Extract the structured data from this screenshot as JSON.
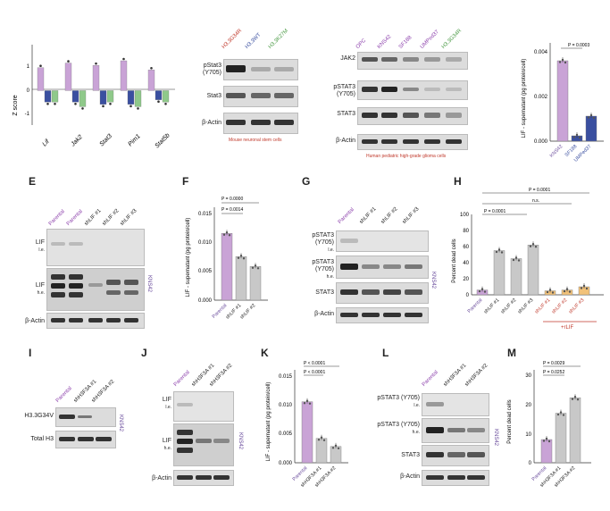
{
  "panels": {
    "labels": [
      "E",
      "F",
      "G",
      "H",
      "I",
      "J",
      "K",
      "L",
      "M"
    ]
  },
  "colors": {
    "purple": "#c9a3d6",
    "purple_dark": "#6a4c9c",
    "blue": "#3a4fa0",
    "green": "#8fc98a",
    "grey": "#c8c8c8",
    "orange": "#f2c27a",
    "red": "#c0392b"
  },
  "panelA": {
    "ylabel": "Z score",
    "genes": [
      "Lif",
      "Jak2",
      "Stat3",
      "Pim1",
      "Stat5b"
    ],
    "ticks": [
      "1",
      "0",
      "-1"
    ]
  },
  "panelB": {
    "lanes": [
      "H3.3G34R",
      "H3.3WT",
      "H3.3K27M"
    ],
    "rows": [
      "pStat3 (Y705)",
      "Stat3",
      "β-Actin"
    ],
    "caption": "Mouse neuronal stem cells"
  },
  "panelC": {
    "lanes": [
      "OPC",
      "KNS42",
      "SF188",
      "UMPed37",
      "H3.3G34R"
    ],
    "rows": [
      "JAK2",
      "pSTAT3 (Y705)",
      "STAT3",
      "β-Actin"
    ],
    "caption": "Human pediatric high-grade glioma cells"
  },
  "panelD": {
    "ylabel": "LIF - supernatant (pg protein/cell)",
    "pval": "P = 0.0003",
    "ticks": [
      "0.004",
      "0.002",
      "0.000"
    ]
  },
  "panelE": {
    "lanes": [
      "Parental",
      "Parental",
      "shLIF #1",
      "shLIF #2",
      "shLIF #3"
    ],
    "rows": [
      {
        "name": "LIF",
        "sub": "l.e."
      },
      {
        "name": "LIF",
        "sub": "h.e."
      },
      {
        "name": "β-Actin",
        "sub": ""
      }
    ],
    "cell": "KNS42"
  },
  "panelF": {
    "ylabel": "LIF - supernatant (pg protein/cell)",
    "p1": "P = 0.0000",
    "p2": "P = 0.0014",
    "ticks": [
      "0.015",
      "0.010",
      "0.005",
      "0.000"
    ]
  },
  "panelG": {
    "lanes": [
      "Parental",
      "shLIF #1",
      "shLIF #2",
      "shLIF #3"
    ],
    "rows": [
      {
        "name": "pSTAT3 (Y705)",
        "sub": "l.e."
      },
      {
        "name": "pSTAT3 (Y705)",
        "sub": "h.e."
      },
      {
        "name": "STAT3",
        "sub": ""
      },
      {
        "name": "β-Actin",
        "sub": ""
      }
    ],
    "cell": "KNS42"
  },
  "panelH": {
    "ylabel": "Percent dead cells",
    "ticks": [
      "100",
      "80",
      "60",
      "40",
      "20",
      "0"
    ],
    "p1": "P = 0.0001",
    "p2": "P = 0.0001",
    "ns": "n.s.",
    "addlbl": "+rLIF"
  },
  "panelI": {
    "lanes": [
      "Parental",
      "shH3F3A #1",
      "shH3F3A #2"
    ],
    "rows": [
      "H3.3G34V",
      "Total H3"
    ],
    "cell": "KNS42"
  },
  "panelJ": {
    "lanes": [
      "Parental",
      "shH3F3A #1",
      "shH3F3A #2"
    ],
    "rows": [
      {
        "name": "LIF",
        "sub": "l.e."
      },
      {
        "name": "LIF",
        "sub": "h.e."
      },
      {
        "name": "β-Actin",
        "sub": ""
      }
    ],
    "cell": "KNS42"
  },
  "panelK": {
    "ylabel": "LIF - supernatant (pg protein/cell)",
    "p1": "P < 0.0001",
    "p2": "P < 0.0001",
    "ticks": [
      "0.015",
      "0.010",
      "0.005",
      "0.000"
    ]
  },
  "panelL": {
    "lanes": [
      "Parental",
      "shH3F3A #1",
      "shH3F3A #2"
    ],
    "rows": [
      {
        "name": "pSTAT3 (Y705)",
        "sub": "l.e."
      },
      {
        "name": "pSTAT3 (Y705)",
        "sub": "h.e."
      },
      {
        "name": "STAT3",
        "sub": ""
      },
      {
        "name": "β-Actin",
        "sub": ""
      }
    ],
    "cell": "KNS42"
  },
  "panelM": {
    "ylabel": "Percent dead cells",
    "p1": "P = 0.0029",
    "p2": "P = 0.0252",
    "ticks": [
      "30",
      "20",
      "10",
      "0"
    ]
  },
  "chart_data": [
    {
      "type": "bar",
      "id": "A",
      "categories": [
        "Lif",
        "Jak2",
        "Stat3",
        "Pim1",
        "Stat5b"
      ],
      "series": [
        {
          "values": [
            1.0,
            1.2,
            1.1,
            1.3,
            0.9
          ]
        },
        {
          "values": [
            -0.5,
            -0.5,
            -0.6,
            -0.6,
            -0.4
          ]
        },
        {
          "values": [
            -0.5,
            -0.7,
            -0.5,
            -0.7,
            -0.5
          ]
        }
      ],
      "ylabel": "Z score",
      "ylim": [
        -1.5,
        2
      ]
    },
    {
      "type": "bar",
      "id": "D",
      "categories": [
        "KNS42",
        "SF188",
        "UMPed37"
      ],
      "values": [
        0.0045,
        0.0003,
        0.0014
      ],
      "ylabel": "LIF - supernatant (pg protein/cell)",
      "ylim": [
        0,
        0.0055
      ]
    },
    {
      "type": "bar",
      "id": "F",
      "categories": [
        "Parental",
        "shLIF #1",
        "shLIF #2"
      ],
      "values": [
        0.0115,
        0.0075,
        0.0058
      ],
      "ylabel": "LIF - supernatant (pg protein/cell)",
      "ylim": [
        0,
        0.016
      ]
    },
    {
      "type": "bar",
      "id": "H",
      "categories": [
        "Parental",
        "shLIF #1",
        "shLIF #2",
        "shLIF #3",
        "shLIF #1",
        "shLIF #2",
        "shLIF #3"
      ],
      "values": [
        6,
        55,
        45,
        62,
        5,
        6,
        10
      ],
      "ylabel": "Percent dead cells",
      "ylim": [
        0,
        100
      ]
    },
    {
      "type": "bar",
      "id": "K",
      "categories": [
        "Parental",
        "shH3F3A #1",
        "shH3F3A #2"
      ],
      "values": [
        0.0105,
        0.0042,
        0.0028
      ],
      "ylabel": "LIF - supernatant (pg protein/cell)",
      "ylim": [
        0,
        0.016
      ]
    },
    {
      "type": "bar",
      "id": "M",
      "categories": [
        "Parental",
        "shH3F3A #1",
        "shH3F3A #2"
      ],
      "values": [
        7.5,
        16,
        21
      ],
      "ylabel": "Percent dead cells",
      "ylim": [
        0,
        30
      ]
    }
  ]
}
